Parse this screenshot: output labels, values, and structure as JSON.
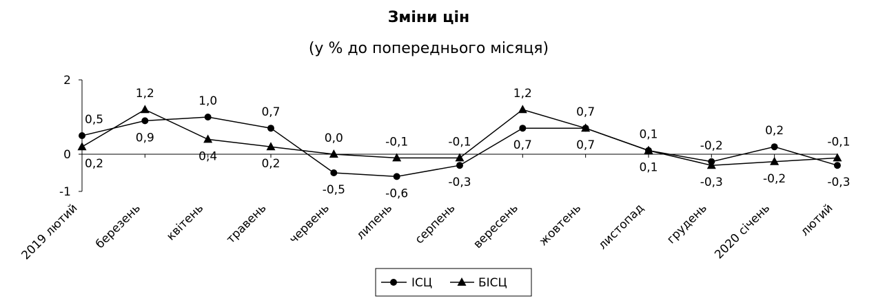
{
  "chart_data": {
    "type": "line",
    "title": "Зміни цін",
    "subtitle": "(у % до попереднього місяця)",
    "categories": [
      "2019 лютий",
      "березень",
      "квітень",
      "травень",
      "червень",
      "липень",
      "серпень",
      "вересень",
      "жовтень",
      "листопад",
      "грудень",
      "2020 січень",
      "лютий"
    ],
    "series": [
      {
        "name": "ІСЦ",
        "marker": "circle",
        "values": [
          0.5,
          0.9,
          1.0,
          0.7,
          -0.5,
          -0.6,
          -0.3,
          0.7,
          0.7,
          0.1,
          -0.2,
          0.2,
          -0.3
        ],
        "labels": [
          "0,5",
          "0,9",
          "1,0",
          "0,7",
          "-0,5",
          "-0,6",
          "-0,3",
          "0,7",
          "0,7",
          "0,1",
          "-0,2",
          "0,2",
          "-0,3"
        ]
      },
      {
        "name": "БІСЦ",
        "marker": "triangle",
        "values": [
          0.2,
          1.2,
          0.4,
          0.2,
          0.0,
          -0.1,
          -0.1,
          1.2,
          0.7,
          0.1,
          -0.3,
          -0.2,
          -0.1
        ],
        "labels": [
          "0,2",
          "1,2",
          "0,4",
          "0,2",
          "0,0",
          "-0,1",
          "-0,1",
          "1,2",
          "0,7",
          "0,1",
          "-0,3",
          "-0,2",
          "-0,1"
        ]
      }
    ],
    "ylim": [
      -1,
      2
    ],
    "yticks": [
      -1,
      0,
      2
    ],
    "ytick_labels": [
      "-1",
      "0",
      "2"
    ],
    "grid": false,
    "legend_position": "bottom",
    "colors": {
      "line": "#000000",
      "background": "#ffffff"
    }
  }
}
